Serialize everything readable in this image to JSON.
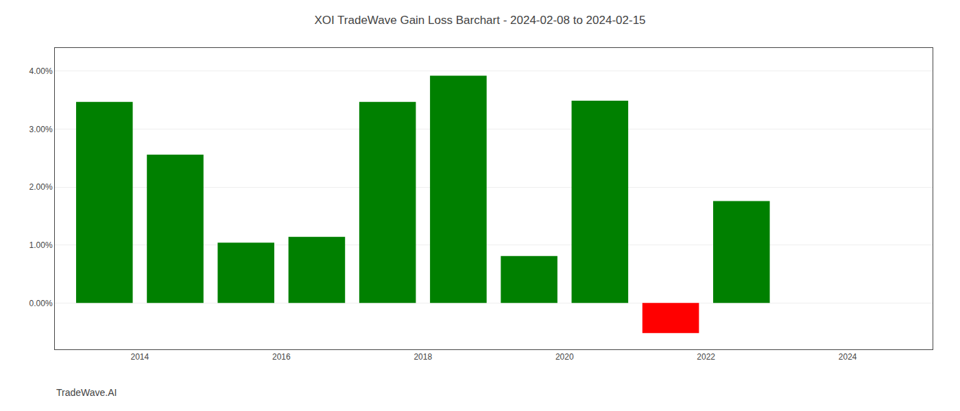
{
  "chart_data": {
    "type": "bar",
    "title": "XOI TradeWave Gain Loss Barchart - 2024-02-08 to 2024-02-15",
    "annotations": [
      "TradeWave.AI"
    ],
    "x": [
      2013.5,
      2014.5,
      2015.5,
      2016.5,
      2017.5,
      2018.5,
      2019.5,
      2020.5,
      2021.5,
      2022.5
    ],
    "values": [
      3.47,
      2.56,
      1.04,
      1.14,
      3.47,
      3.92,
      0.81,
      3.49,
      -0.52,
      1.76
    ],
    "colors": [
      "#008000",
      "#008000",
      "#008000",
      "#008000",
      "#008000",
      "#008000",
      "#008000",
      "#008000",
      "#ff0000",
      "#008000"
    ],
    "xlim": [
      2012.8,
      2025.2
    ],
    "xticks": [
      2014,
      2016,
      2018,
      2020,
      2022,
      2024
    ],
    "ylim": [
      -0.8,
      4.4
    ],
    "yticks": [
      {
        "value": 0.0,
        "label": "0.00%"
      },
      {
        "value": 1.0,
        "label": "1.00%"
      },
      {
        "value": 2.0,
        "label": "2.00%"
      },
      {
        "value": 3.0,
        "label": "3.00%"
      },
      {
        "value": 4.0,
        "label": "4.00%"
      }
    ],
    "grid": true
  }
}
